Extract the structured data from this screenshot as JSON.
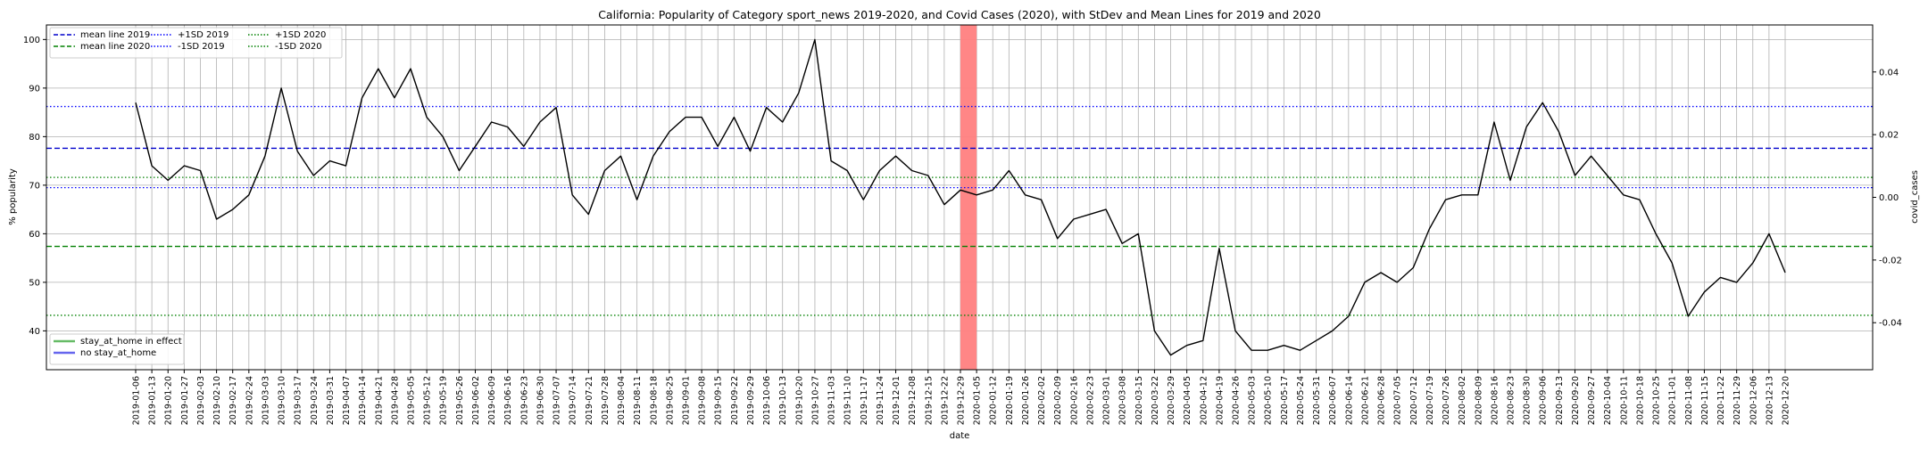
{
  "chart_data": {
    "type": "line",
    "title": "California: Popularity of Category sport_news 2019-2020, and Covid Cases (2020), with StDev and Mean Lines for 2019 and 2020",
    "xlabel": "date",
    "ylabel": "% popularity",
    "y2label": "covid_cases",
    "ylim": [
      32,
      103
    ],
    "y2lim": [
      -0.055,
      0.055
    ],
    "yticks": [
      40,
      50,
      60,
      70,
      80,
      90,
      100
    ],
    "y2ticks": [
      "-0.04",
      "-0.02",
      "0.00",
      "0.02",
      "0.04"
    ],
    "y2tick_values": [
      -0.04,
      -0.02,
      0.0,
      0.02,
      0.04
    ],
    "grid": true,
    "x": [
      "2019-01-06",
      "2019-01-13",
      "2019-01-20",
      "2019-01-27",
      "2019-02-03",
      "2019-02-10",
      "2019-02-17",
      "2019-02-24",
      "2019-03-03",
      "2019-03-10",
      "2019-03-17",
      "2019-03-24",
      "2019-03-31",
      "2019-04-07",
      "2019-04-14",
      "2019-04-21",
      "2019-04-28",
      "2019-05-05",
      "2019-05-12",
      "2019-05-19",
      "2019-05-26",
      "2019-06-02",
      "2019-06-09",
      "2019-06-16",
      "2019-06-23",
      "2019-06-30",
      "2019-07-07",
      "2019-07-14",
      "2019-07-21",
      "2019-07-28",
      "2019-08-04",
      "2019-08-11",
      "2019-08-18",
      "2019-08-25",
      "2019-09-01",
      "2019-09-08",
      "2019-09-15",
      "2019-09-22",
      "2019-09-29",
      "2019-10-06",
      "2019-10-13",
      "2019-10-20",
      "2019-10-27",
      "2019-11-03",
      "2019-11-10",
      "2019-11-17",
      "2019-11-24",
      "2019-12-01",
      "2019-12-08",
      "2019-12-15",
      "2019-12-22",
      "2019-12-29",
      "2020-01-05",
      "2020-01-12",
      "2020-01-19",
      "2020-01-26",
      "2020-02-02",
      "2020-02-09",
      "2020-02-16",
      "2020-02-23",
      "2020-03-01",
      "2020-03-08",
      "2020-03-15",
      "2020-03-22",
      "2020-03-29",
      "2020-04-05",
      "2020-04-12",
      "2020-04-19",
      "2020-04-26",
      "2020-05-03",
      "2020-05-10",
      "2020-05-17",
      "2020-05-24",
      "2020-05-31",
      "2020-06-07",
      "2020-06-14",
      "2020-06-21",
      "2020-06-28",
      "2020-07-05",
      "2020-07-12",
      "2020-07-19",
      "2020-07-26",
      "2020-08-02",
      "2020-08-09",
      "2020-08-16",
      "2020-08-23",
      "2020-08-30",
      "2020-09-06",
      "2020-09-13",
      "2020-09-20",
      "2020-09-27",
      "2020-10-04",
      "2020-10-11",
      "2020-10-18",
      "2020-10-25",
      "2020-11-01",
      "2020-11-08",
      "2020-11-15",
      "2020-11-22",
      "2020-11-29",
      "2020-12-06",
      "2020-12-13",
      "2020-12-20"
    ],
    "series": [
      {
        "values": [
          87,
          74,
          71,
          74,
          73,
          63,
          65,
          68,
          76,
          90,
          77,
          72,
          75,
          74,
          88,
          94,
          88,
          94,
          84,
          80,
          73,
          78,
          83,
          82,
          78,
          83,
          86,
          68,
          64,
          73,
          76,
          67,
          76,
          81,
          84,
          84,
          78,
          84,
          77,
          86,
          83,
          89,
          100,
          75,
          73,
          67,
          73,
          76,
          73,
          72,
          66,
          69,
          68,
          69,
          73,
          68,
          67,
          59,
          63,
          64,
          65,
          58,
          60,
          40,
          35,
          37,
          38,
          57,
          40,
          36,
          36,
          37,
          36,
          38,
          40,
          43,
          50,
          52,
          50,
          53,
          61,
          67,
          68,
          68,
          83,
          71,
          82,
          87,
          81,
          72,
          76,
          72,
          68,
          67,
          60,
          54,
          43,
          48,
          51,
          50,
          54,
          60,
          52
        ],
        "color": "#000000"
      }
    ],
    "reference_lines": {
      "mean_2019": 77.6,
      "plus1sd_2019": 86.2,
      "minus1sd_2019": 69.5,
      "mean_2020": 57.4,
      "plus1sd_2020": 71.6,
      "minus1sd_2020": 43.2
    },
    "highlight_span": {
      "from": "2019-12-29",
      "to": "2020-01-05",
      "color": "#ff7f7f"
    },
    "legend_top": {
      "placement": "upper-left",
      "entries": [
        {
          "label": "mean line 2019",
          "color": "#0000cc",
          "style": "dashed"
        },
        {
          "label": "mean line 2020",
          "color": "#008000",
          "style": "dashed"
        },
        {
          "label": "+1SD 2019",
          "color": "#0000ff",
          "style": "dotted"
        },
        {
          "label": "-1SD 2019",
          "color": "#0000ff",
          "style": "dotted"
        },
        {
          "label": "+1SD 2020",
          "color": "#008000",
          "style": "dotted"
        },
        {
          "label": "-1SD 2020",
          "color": "#008000",
          "style": "dotted"
        }
      ]
    },
    "legend_bottom": {
      "placement": "lower-left",
      "entries": [
        {
          "label": "stay_at_home in effect",
          "color": "#66bb66",
          "style": "solid"
        },
        {
          "label": "no stay_at_home",
          "color": "#6666ee",
          "style": "solid"
        }
      ]
    }
  }
}
